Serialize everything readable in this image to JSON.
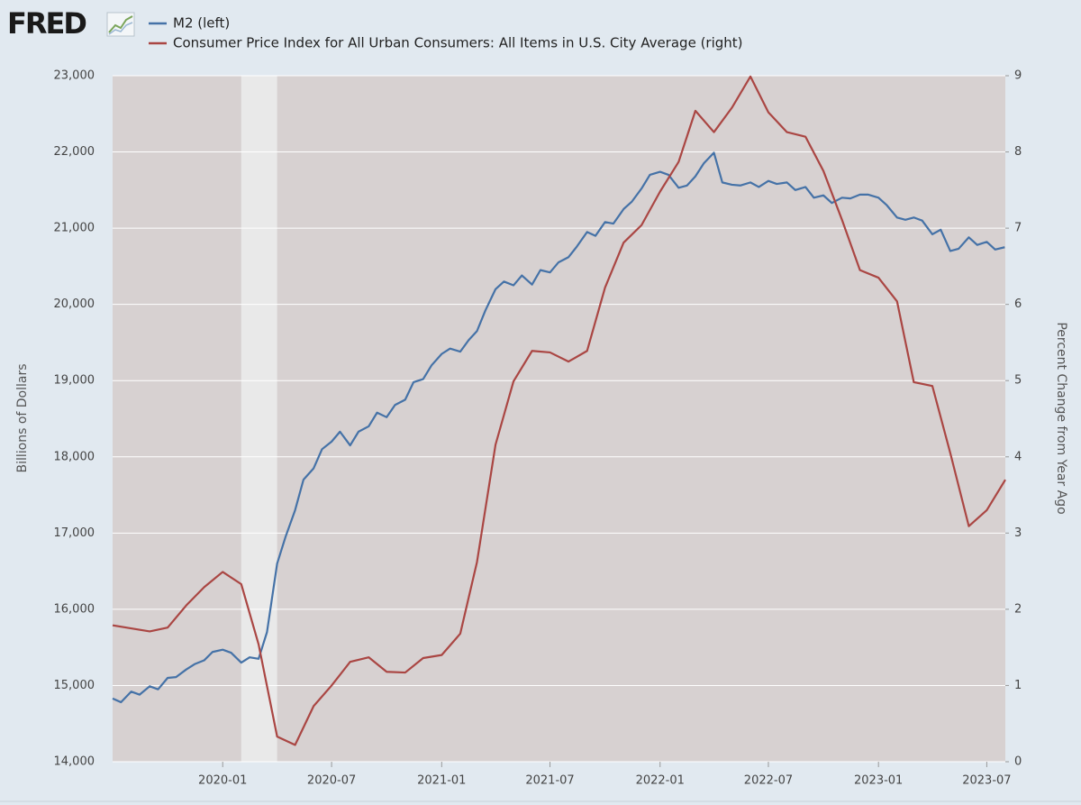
{
  "chart_data": {
    "type": "line",
    "logo": "FRED",
    "ylabel": "Billions of Dollars",
    "y2label": "Percent Change from Year Ago",
    "xlim": [
      "2019-07-01",
      "2023-08-01"
    ],
    "xticks": [
      {
        "value": "2020-01-01",
        "label": "2020-01"
      },
      {
        "value": "2020-07-01",
        "label": "2020-07"
      },
      {
        "value": "2021-01-01",
        "label": "2021-01"
      },
      {
        "value": "2021-07-01",
        "label": "2021-07"
      },
      {
        "value": "2022-01-01",
        "label": "2022-01"
      },
      {
        "value": "2022-07-01",
        "label": "2022-07"
      },
      {
        "value": "2023-01-01",
        "label": "2023-01"
      },
      {
        "value": "2023-07-01",
        "label": "2023-07"
      }
    ],
    "ylim": [
      14000,
      23000
    ],
    "yticks": [
      {
        "value": 14000,
        "label": "14,000"
      },
      {
        "value": 15000,
        "label": "15,000"
      },
      {
        "value": 16000,
        "label": "16,000"
      },
      {
        "value": 17000,
        "label": "17,000"
      },
      {
        "value": 18000,
        "label": "18,000"
      },
      {
        "value": 19000,
        "label": "19,000"
      },
      {
        "value": 20000,
        "label": "20,000"
      },
      {
        "value": 21000,
        "label": "21,000"
      },
      {
        "value": 22000,
        "label": "22,000"
      },
      {
        "value": 23000,
        "label": "23,000"
      }
    ],
    "y2lim": [
      0,
      9
    ],
    "y2ticks": [
      0,
      1,
      2,
      3,
      4,
      5,
      6,
      7,
      8,
      9
    ],
    "grid": true,
    "recessions": [
      {
        "start": "2020-02-01",
        "end": "2020-04-01"
      }
    ],
    "series": [
      {
        "name": "M2 (left)",
        "color": "#4572a7",
        "axis": "y",
        "x": [
          "2019-07-01",
          "2019-07-15",
          "2019-08-01",
          "2019-08-15",
          "2019-09-01",
          "2019-09-15",
          "2019-10-01",
          "2019-10-15",
          "2019-11-01",
          "2019-11-15",
          "2019-12-01",
          "2019-12-15",
          "2020-01-01",
          "2020-01-15",
          "2020-02-01",
          "2020-02-15",
          "2020-03-01",
          "2020-03-15",
          "2020-04-01",
          "2020-04-15",
          "2020-05-01",
          "2020-05-15",
          "2020-06-01",
          "2020-06-15",
          "2020-07-01",
          "2020-07-15",
          "2020-08-01",
          "2020-08-15",
          "2020-09-01",
          "2020-09-15",
          "2020-10-01",
          "2020-10-15",
          "2020-11-01",
          "2020-11-15",
          "2020-12-01",
          "2020-12-15",
          "2021-01-01",
          "2021-01-15",
          "2021-02-01",
          "2021-02-15",
          "2021-03-01",
          "2021-03-15",
          "2021-04-01",
          "2021-04-15",
          "2021-05-01",
          "2021-05-15",
          "2021-06-01",
          "2021-06-15",
          "2021-07-01",
          "2021-07-15",
          "2021-08-01",
          "2021-08-15",
          "2021-09-01",
          "2021-09-15",
          "2021-10-01",
          "2021-10-15",
          "2021-11-01",
          "2021-11-15",
          "2021-12-01",
          "2021-12-15",
          "2022-01-01",
          "2022-01-15",
          "2022-02-01",
          "2022-02-15",
          "2022-03-01",
          "2022-03-15",
          "2022-04-01",
          "2022-04-15",
          "2022-05-01",
          "2022-05-15",
          "2022-06-01",
          "2022-06-15",
          "2022-07-01",
          "2022-07-15",
          "2022-08-01",
          "2022-08-15",
          "2022-09-01",
          "2022-09-15",
          "2022-10-01",
          "2022-10-15",
          "2022-11-01",
          "2022-11-15",
          "2022-12-01",
          "2022-12-15",
          "2023-01-01",
          "2023-01-15",
          "2023-02-01",
          "2023-02-15",
          "2023-03-01",
          "2023-03-15",
          "2023-04-01",
          "2023-04-15",
          "2023-05-01",
          "2023-05-15",
          "2023-06-01",
          "2023-06-15",
          "2023-07-01",
          "2023-07-15",
          "2023-07-31"
        ],
        "values": [
          14830,
          14780,
          14920,
          14880,
          14990,
          14950,
          15100,
          15110,
          15210,
          15280,
          15330,
          15440,
          15470,
          15430,
          15300,
          15370,
          15350,
          15700,
          16600,
          16950,
          17300,
          17700,
          17850,
          18100,
          18200,
          18330,
          18150,
          18330,
          18400,
          18580,
          18520,
          18680,
          18750,
          18980,
          19020,
          19200,
          19350,
          19420,
          19380,
          19530,
          19650,
          19920,
          20200,
          20300,
          20250,
          20380,
          20260,
          20450,
          20420,
          20550,
          20620,
          20760,
          20950,
          20900,
          21080,
          21060,
          21250,
          21350,
          21520,
          21700,
          21740,
          21700,
          21530,
          21560,
          21680,
          21850,
          21990,
          21600,
          21570,
          21560,
          21600,
          21540,
          21620,
          21580,
          21600,
          21500,
          21540,
          21400,
          21430,
          21330,
          21400,
          21390,
          21440,
          21440,
          21400,
          21300,
          21140,
          21110,
          21140,
          21100,
          20920,
          20980,
          20700,
          20730,
          20880,
          20780,
          20820,
          20720,
          20750
        ]
      },
      {
        "name": "Consumer Price Index for All Urban Consumers: All Items in U.S. City Average (right)",
        "color": "#aa4643",
        "axis": "y2",
        "x": [
          "2019-07-01",
          "2019-08-01",
          "2019-09-01",
          "2019-10-01",
          "2019-11-01",
          "2019-12-01",
          "2020-01-01",
          "2020-02-01",
          "2020-03-01",
          "2020-04-01",
          "2020-05-01",
          "2020-06-01",
          "2020-07-01",
          "2020-08-01",
          "2020-09-01",
          "2020-10-01",
          "2020-11-01",
          "2020-12-01",
          "2021-01-01",
          "2021-02-01",
          "2021-03-01",
          "2021-04-01",
          "2021-05-01",
          "2021-06-01",
          "2021-07-01",
          "2021-08-01",
          "2021-09-01",
          "2021-10-01",
          "2021-11-01",
          "2021-12-01",
          "2022-01-01",
          "2022-02-01",
          "2022-03-01",
          "2022-04-01",
          "2022-05-01",
          "2022-06-01",
          "2022-07-01",
          "2022-08-01",
          "2022-09-01",
          "2022-10-01",
          "2022-11-01",
          "2022-12-01",
          "2023-01-01",
          "2023-02-01",
          "2023-03-01",
          "2023-04-01",
          "2023-05-01",
          "2023-06-01",
          "2023-07-01",
          "2023-08-01"
        ],
        "values": [
          1.79,
          1.75,
          1.71,
          1.76,
          2.05,
          2.29,
          2.49,
          2.33,
          1.54,
          0.33,
          0.22,
          0.73,
          1.0,
          1.31,
          1.37,
          1.18,
          1.17,
          1.36,
          1.4,
          1.68,
          2.62,
          4.16,
          4.99,
          5.39,
          5.37,
          5.25,
          5.39,
          6.22,
          6.81,
          7.04,
          7.48,
          7.87,
          8.54,
          8.26,
          8.58,
          8.99,
          8.52,
          8.26,
          8.2,
          7.75,
          7.11,
          6.45,
          6.35,
          6.04,
          4.98,
          4.93,
          4.05,
          3.09,
          3.3,
          3.7
        ]
      }
    ]
  }
}
